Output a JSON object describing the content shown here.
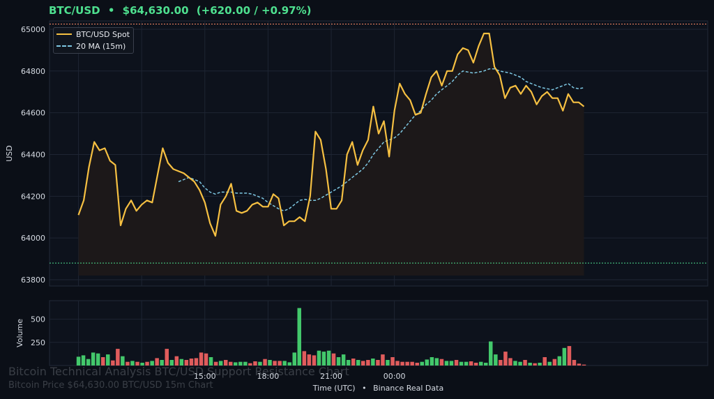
{
  "header": {
    "symbol": "BTC/USD",
    "separator": "•",
    "price": "$64,630.00",
    "change": "(+620.00 / +0.97%)"
  },
  "watermark": {
    "title": "Bitcoin Technical Analysis BTC/USD Support Resistance Chart",
    "subtitle": "Bitcoin Price $64,630.00 BTC/USD 15m Chart"
  },
  "footer": {
    "xlabel": "Time (UTC)",
    "separator": "•",
    "source": "Binance Real Data"
  },
  "colors": {
    "background": "#0b0f17",
    "price_line": "#f6c042",
    "ma_line": "#7ec8e3",
    "resistance": "#ff8a65",
    "support": "#4ee08f",
    "volume_up": "#43c86b",
    "volume_down": "#e05c5c",
    "grid": "#1e2533"
  },
  "chart_data": {
    "type": "line",
    "ylabel": "USD",
    "volume_ylabel": "Volume",
    "ylim": [
      63770,
      65040
    ],
    "volume_ylim": [
      0,
      700
    ],
    "yticks": [
      63800,
      64000,
      64200,
      64400,
      64600,
      64800,
      65000
    ],
    "ytick_labels": [
      "63800",
      "64000",
      "64200",
      "64400",
      "64600",
      "64800",
      "65000"
    ],
    "volume_yticks": [
      250,
      500
    ],
    "volume_ytick_labels": [
      "250",
      "500"
    ],
    "x_range": [
      -5.5,
      119.5
    ],
    "xticks": [
      24,
      36,
      48,
      60
    ],
    "xtick_labels": [
      "15:00",
      "18:00",
      "21:00",
      "00:00"
    ],
    "grid": true,
    "legend_position": "top-left",
    "resistance_level": 65025,
    "support_level": 63880,
    "fill_baseline": 63820,
    "series": [
      {
        "name": "BTC/USD Spot",
        "values": [
          64110,
          64180,
          64340,
          64460,
          64420,
          64430,
          64370,
          64350,
          64060,
          64140,
          64180,
          64130,
          64160,
          64180,
          64170,
          64300,
          64430,
          64360,
          64330,
          64320,
          64310,
          64290,
          64270,
          64230,
          64170,
          64070,
          64010,
          64160,
          64200,
          64260,
          64130,
          64120,
          64130,
          64160,
          64170,
          64150,
          64150,
          64210,
          64190,
          64060,
          64080,
          64080,
          64100,
          64080,
          64200,
          64510,
          64470,
          64330,
          64140,
          64140,
          64180,
          64400,
          64460,
          64350,
          64420,
          64470,
          64630,
          64500,
          64560,
          64390,
          64610,
          64740,
          64690,
          64660,
          64590,
          64600,
          64690,
          64770,
          64800,
          64730,
          64800,
          64800,
          64880,
          64910,
          64900,
          64840,
          64920,
          64980,
          64980,
          64820,
          64780,
          64670,
          64720,
          64730,
          64690,
          64730,
          64700,
          64640,
          64680,
          64700,
          64670,
          64670,
          64610,
          64690,
          64650,
          64650,
          64630
        ]
      },
      {
        "name": "20 MA (15m)",
        "start_index": 19,
        "values": [
          64270,
          64280,
          64290,
          64280,
          64270,
          64240,
          64220,
          64210,
          64220,
          64220,
          64220,
          64215,
          64215,
          64215,
          64210,
          64200,
          64190,
          64170,
          64155,
          64140,
          64130,
          64140,
          64160,
          64180,
          64185,
          64180,
          64180,
          64190,
          64205,
          64220,
          64235,
          64250,
          64270,
          64290,
          64310,
          64330,
          64360,
          64400,
          64430,
          64460,
          64470,
          64480,
          64500,
          64530,
          64560,
          64590,
          64610,
          64640,
          64660,
          64690,
          64710,
          64730,
          64750,
          64780,
          64800,
          64795,
          64790,
          64795,
          64800,
          64810,
          64810,
          64800,
          64795,
          64790,
          64780,
          64770,
          64750,
          64740,
          64730,
          64720,
          64715,
          64710,
          64720,
          64730,
          64740,
          64720,
          64715,
          64720
        ]
      }
    ],
    "volume": {
      "values": [
        95,
        110,
        70,
        140,
        130,
        90,
        120,
        55,
        180,
        100,
        40,
        50,
        40,
        30,
        40,
        50,
        80,
        60,
        180,
        60,
        100,
        70,
        60,
        75,
        80,
        140,
        130,
        90,
        40,
        50,
        60,
        40,
        35,
        40,
        40,
        25,
        45,
        40,
        70,
        60,
        50,
        50,
        50,
        35,
        140,
        620,
        155,
        120,
        110,
        160,
        150,
        160,
        130,
        90,
        120,
        60,
        75,
        60,
        50,
        60,
        75,
        60,
        120,
        60,
        90,
        50,
        40,
        40,
        40,
        30,
        40,
        65,
        90,
        80,
        70,
        50,
        50,
        60,
        40,
        40,
        45,
        30,
        40,
        30,
        260,
        120,
        60,
        150,
        80,
        50,
        40,
        60,
        30,
        25,
        30,
        90,
        40,
        70,
        100,
        190,
        210,
        60,
        20,
        10
      ],
      "direction": [
        "up",
        "up",
        "up",
        "up",
        "up",
        "down",
        "up",
        "down",
        "down",
        "up",
        "down",
        "up",
        "down",
        "up",
        "down",
        "up",
        "down",
        "up",
        "down",
        "up",
        "down",
        "up",
        "down",
        "down",
        "down",
        "down",
        "down",
        "up",
        "down",
        "up",
        "down",
        "down",
        "up",
        "up",
        "up",
        "down",
        "down",
        "up",
        "down",
        "up",
        "down",
        "down",
        "up",
        "up",
        "up",
        "up",
        "down",
        "down",
        "down",
        "up",
        "up",
        "up",
        "down",
        "up",
        "up",
        "up",
        "down",
        "up",
        "down",
        "down",
        "up",
        "down",
        "down",
        "up",
        "down",
        "down",
        "down",
        "down",
        "down",
        "down",
        "up",
        "up",
        "up",
        "up",
        "down",
        "up",
        "up",
        "down",
        "up",
        "up",
        "down",
        "down",
        "up",
        "up",
        "up",
        "up",
        "down",
        "down",
        "down",
        "up",
        "up",
        "down",
        "up",
        "down",
        "up",
        "down",
        "up",
        "down",
        "up",
        "up",
        "down",
        "down",
        "down",
        "down"
      ]
    }
  }
}
